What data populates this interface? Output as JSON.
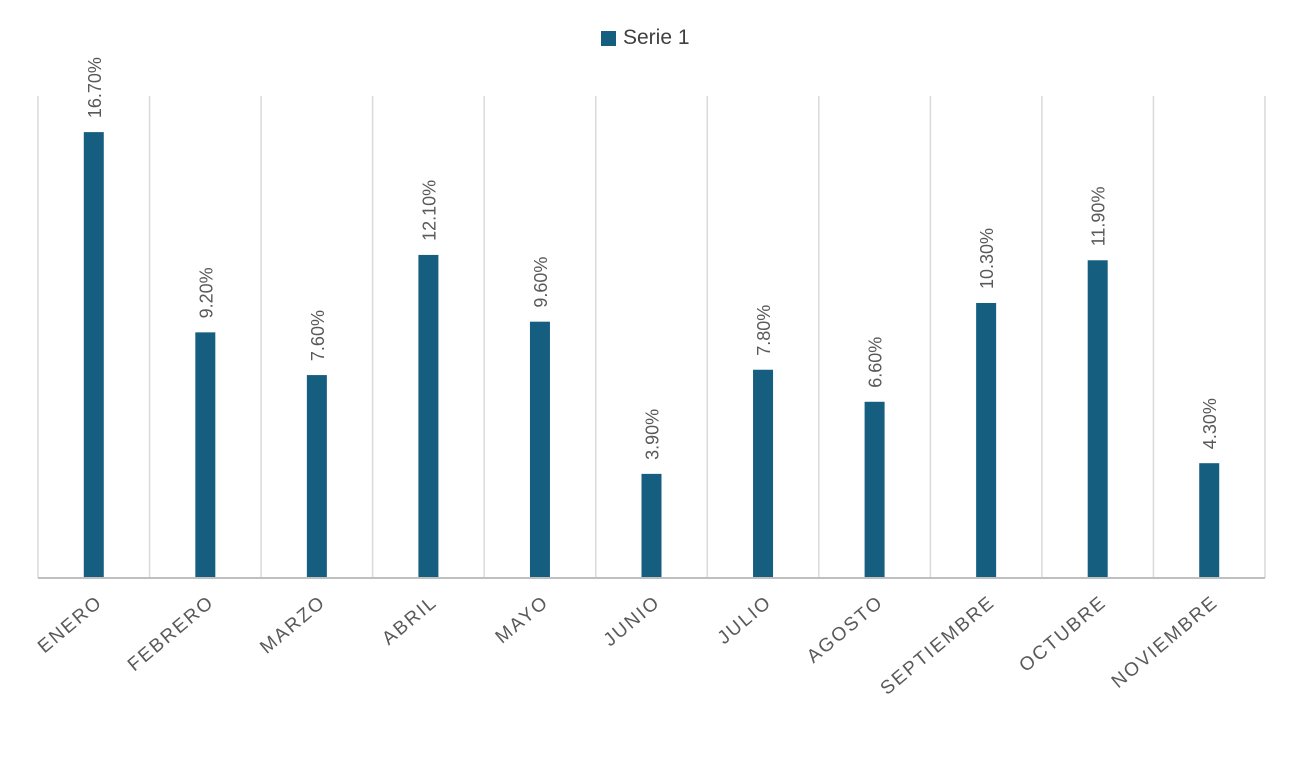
{
  "chart_data": {
    "type": "bar",
    "categories": [
      "ENERO",
      "FEBRERO",
      "MARZO",
      "ABRIL",
      "MAYO",
      "JUNIO",
      "JULIO",
      "AGOSTO",
      "SEPTIEMBRE",
      "OCTUBRE",
      "NOVIEMBRE"
    ],
    "series": [
      {
        "name": "Serie 1",
        "values": [
          16.7,
          9.2,
          7.6,
          12.1,
          9.6,
          3.9,
          7.8,
          6.6,
          10.3,
          11.9,
          4.3
        ],
        "labels": [
          "16.70%",
          "9.20%",
          "7.60%",
          "12.10%",
          "9.60%",
          "3.90%",
          "7.80%",
          "6.60%",
          "10.30%",
          "11.90%",
          "4.30%"
        ]
      }
    ],
    "ylim": [
      0,
      18
    ],
    "legend": "top-center",
    "grid": "vertical",
    "colors": {
      "bar": "#155e80",
      "grid": "#d9d9d9",
      "axis": "#bfbfbf",
      "text": "#595959"
    }
  }
}
